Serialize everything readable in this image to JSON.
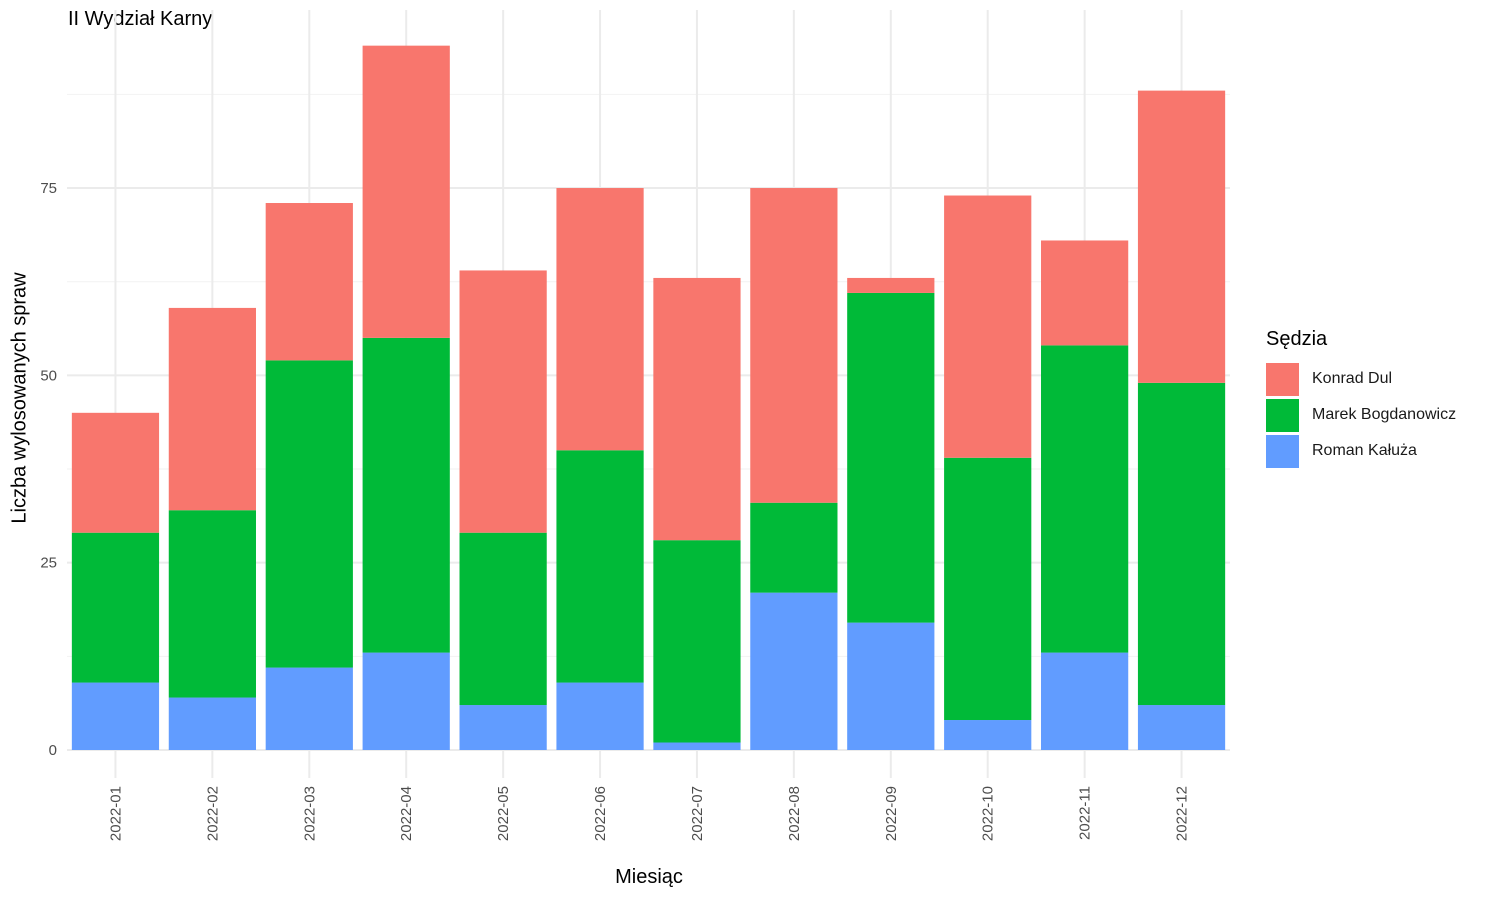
{
  "chart_data": {
    "type": "bar",
    "stacked": true,
    "title": "II Wydział Karny",
    "xlabel": "Miesiąc",
    "ylabel": "Liczba wylosowanych spraw",
    "ylim": [
      0,
      97
    ],
    "yticks": [
      0,
      25,
      50,
      75
    ],
    "grid": true,
    "legend_title": "Sędzia",
    "legend_position": "right",
    "categories": [
      "2022-01",
      "2022-02",
      "2022-03",
      "2022-04",
      "2022-05",
      "2022-06",
      "2022-07",
      "2022-08",
      "2022-09",
      "2022-10",
      "2022-11",
      "2022-12"
    ],
    "series": [
      {
        "name": "Konrad Dul",
        "color": "#F8766D",
        "values": [
          16,
          27,
          21,
          39,
          35,
          35,
          35,
          42,
          2,
          35,
          14,
          39
        ]
      },
      {
        "name": "Marek Bogdanowicz",
        "color": "#00BA38",
        "values": [
          20,
          25,
          41,
          42,
          23,
          31,
          27,
          12,
          44,
          35,
          41,
          43
        ]
      },
      {
        "name": "Roman Kałuża",
        "color": "#619CFF",
        "values": [
          9,
          7,
          11,
          13,
          6,
          9,
          1,
          21,
          17,
          4,
          13,
          6
        ]
      }
    ],
    "stack_order_bottom_to_top": [
      "Roman Kałuża",
      "Marek Bogdanowicz",
      "Konrad Dul"
    ]
  }
}
